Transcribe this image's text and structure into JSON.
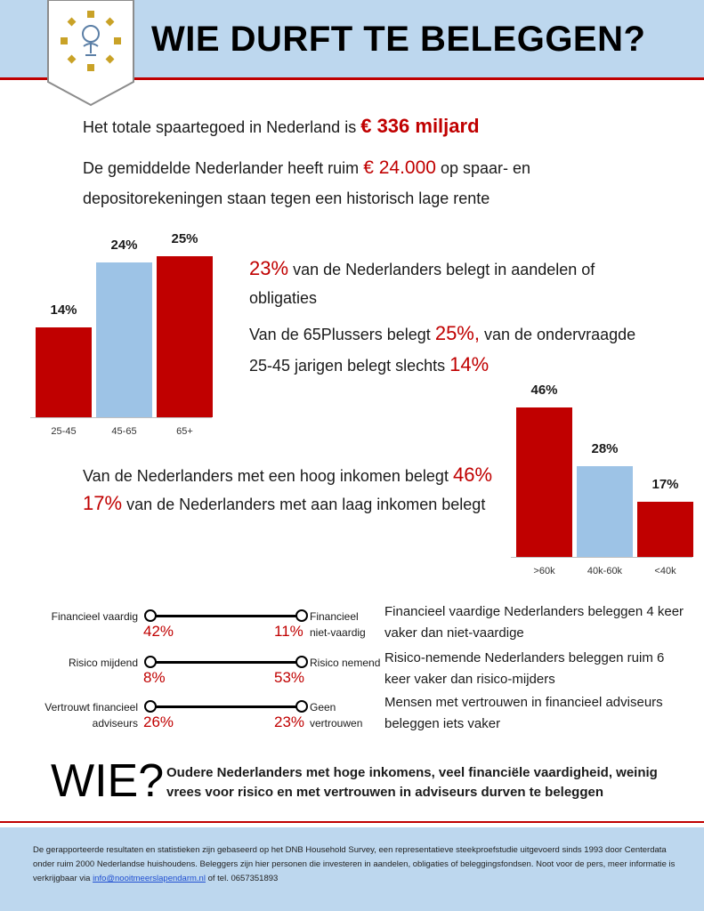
{
  "header": {
    "title": "WIE DURFT TE BELEGGEN?"
  },
  "intro": {
    "line1_text": "Het totale spaartegoed in Nederland is",
    "line1_value": "€ 336 miljard",
    "line2_text_a": "De gemiddelde Nederlander heeft ruim",
    "line2_value": "€ 24.000",
    "line2_text_b": "op spaar- en depositorekeningen staan tegen een historisch lage rente"
  },
  "age_section": {
    "stat1_value": "23%",
    "stat1_text": "van de Nederlanders belegt in aandelen of obligaties",
    "stat2_text_a": "Van de 65Plussers belegt",
    "stat2_value_a": "25%,",
    "stat2_text_b": "van de ondervraagde 25-45 jarigen belegt slechts",
    "stat2_value_b": "14%"
  },
  "income_section": {
    "line1_text": "Van de Nederlanders met een hoog inkomen belegt",
    "line1_value": "46%",
    "line2_value": "17%",
    "line2_text": "van de Nederlanders met aan laag inkomen belegt"
  },
  "chart_data": [
    {
      "type": "bar",
      "categories": [
        "25-45",
        "45-65",
        "65+"
      ],
      "values": [
        14,
        24,
        25
      ],
      "labels": [
        "14%",
        "24%",
        "25%"
      ],
      "colors": [
        "#c00000",
        "#9dc3e6",
        "#c00000"
      ]
    },
    {
      "type": "bar",
      "categories": [
        ">60k",
        "40k-60k",
        "<40k"
      ],
      "values": [
        46,
        28,
        17
      ],
      "labels": [
        "46%",
        "28%",
        "17%"
      ],
      "colors": [
        "#c00000",
        "#9dc3e6",
        "#c00000"
      ]
    }
  ],
  "comparisons": [
    {
      "left_label": "Financieel vaardig",
      "left_value": "42%",
      "right_value": "11%",
      "right_label": "Financieel niet-vaardig",
      "description": "Financieel vaardige Nederlanders beleggen 4 keer vaker dan niet-vaardige"
    },
    {
      "left_label": "Risico mijdend",
      "left_value": "8%",
      "right_value": "53%",
      "right_label": "Risico nemend",
      "description": "Risico-nemende Nederlanders beleggen ruim 6 keer vaker dan risico-mijders"
    },
    {
      "left_label": "Vertrouwt financieel adviseurs",
      "left_value": "26%",
      "right_value": "23%",
      "right_label": "Geen vertrouwen",
      "description": "Mensen met vertrouwen in financieel adviseurs beleggen iets vaker"
    }
  ],
  "conclusion": {
    "heading": "WIE?",
    "text": "Oudere Nederlanders met hoge inkomens, veel financiële vaardigheid, weinig vrees voor risico en met vertrouwen in adviseurs durven te beleggen"
  },
  "footer": {
    "text_a": "De gerapporteerde resultaten en statistieken zijn gebaseerd op het DNB Household Survey, een representatieve steekproefstudie uitgevoerd sinds 1993 door Centerdata onder ruim 2000 Nederlandse huishoudens. Beleggers zijn hier personen die investeren in aandelen, obligaties of beleggingsfondsen. Noot voor de pers, meer informatie is verkrijgbaar via",
    "email": "info@nooitmeerslapendarm.nl",
    "text_b": "of tel. 0657351893"
  },
  "colors": {
    "accent": "#c00000",
    "light_blue": "#bdd7ee",
    "bar_blue": "#9dc3e6"
  },
  "icons": {
    "logo": "tree-sun-logo-icon"
  }
}
